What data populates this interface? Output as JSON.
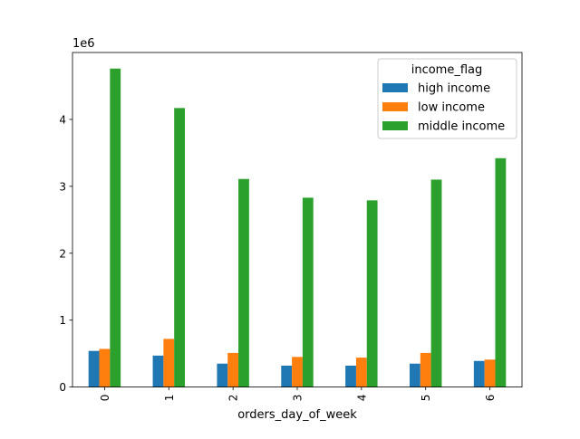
{
  "chart_data": {
    "type": "bar",
    "xlabel": "orders_day_of_week",
    "ylabel": "",
    "offset_label": "1e6",
    "categories": [
      "0",
      "1",
      "2",
      "3",
      "4",
      "5",
      "6"
    ],
    "yticks": [
      "0",
      "1",
      "2",
      "3",
      "4"
    ],
    "ylim": [
      0,
      5000000
    ],
    "legend": {
      "title": "income_flag",
      "placement": "top-right"
    },
    "grid": false,
    "series": [
      {
        "name": "high income",
        "color": "#1f77b4",
        "values": [
          540000,
          470000,
          350000,
          320000,
          320000,
          350000,
          390000
        ]
      },
      {
        "name": "low income",
        "color": "#ff7f0e",
        "values": [
          570000,
          720000,
          510000,
          450000,
          440000,
          510000,
          410000
        ]
      },
      {
        "name": "middle income",
        "color": "#2ca02c",
        "values": [
          4760000,
          4170000,
          3110000,
          2830000,
          2790000,
          3100000,
          3420000
        ]
      }
    ]
  }
}
